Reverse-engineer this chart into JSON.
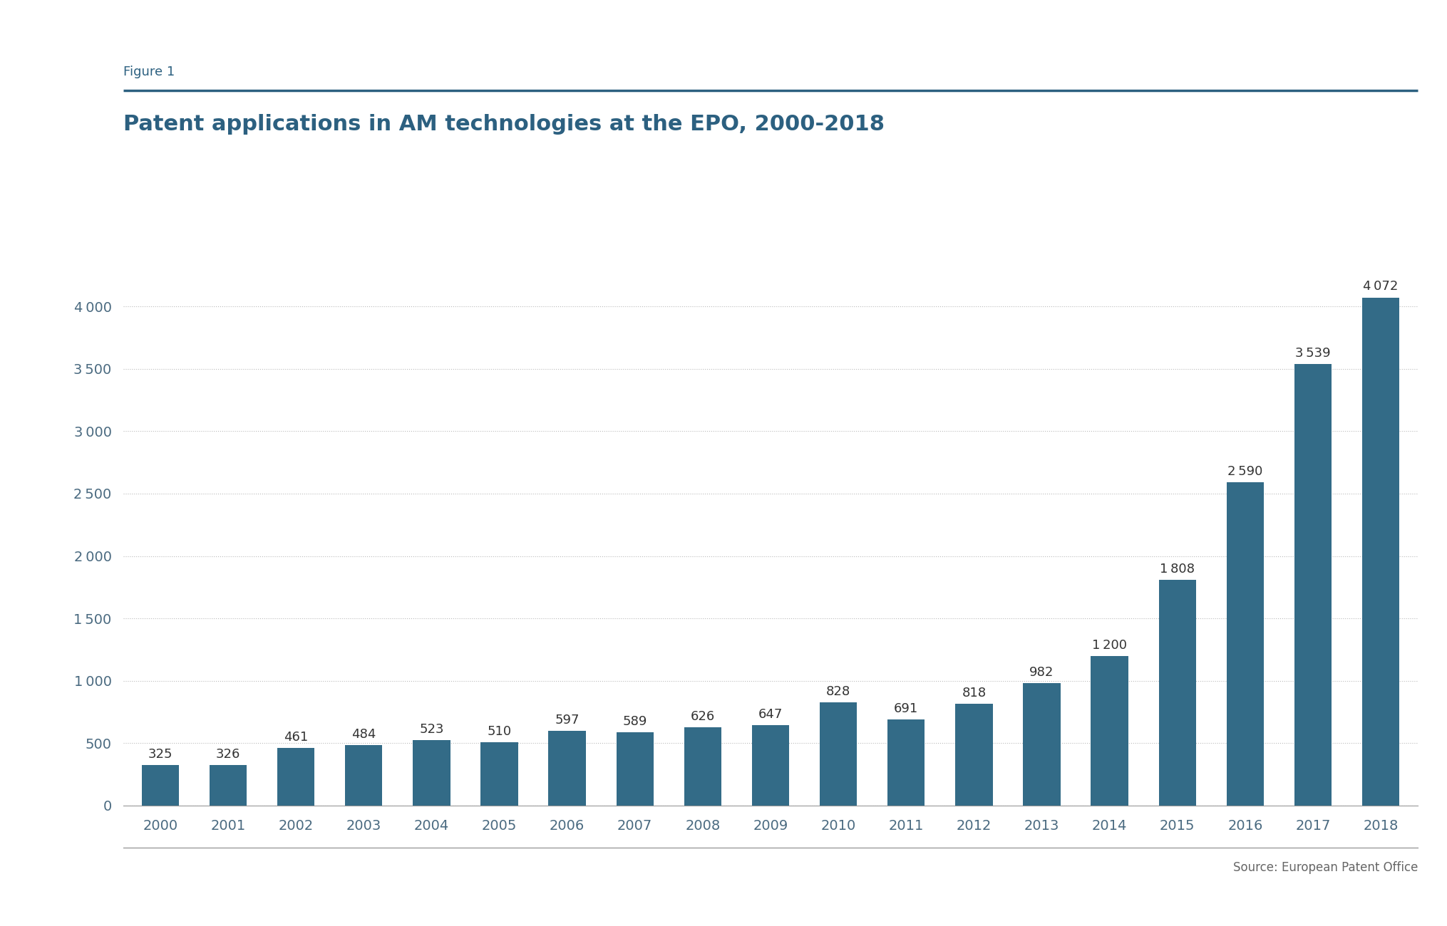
{
  "years": [
    2000,
    2001,
    2002,
    2003,
    2004,
    2005,
    2006,
    2007,
    2008,
    2009,
    2010,
    2011,
    2012,
    2013,
    2014,
    2015,
    2016,
    2017,
    2018
  ],
  "values": [
    325,
    326,
    461,
    484,
    523,
    510,
    597,
    589,
    626,
    647,
    828,
    691,
    818,
    982,
    1200,
    1808,
    2590,
    3539,
    4072
  ],
  "bar_color": "#336B87",
  "background_color": "#FFFFFF",
  "figure_label": "Figure 1",
  "title": "Patent applications in AM technologies at the EPO, 2000-2018",
  "source_text": "Source: European Patent Office",
  "ylim": [
    0,
    4600
  ],
  "yticks": [
    0,
    500,
    1000,
    1500,
    2000,
    2500,
    3000,
    3500,
    4000
  ],
  "title_color": "#2C6080",
  "figure_label_color": "#2C6080",
  "grid_color": "#BBBBBB",
  "tick_label_color": "#4A6A80",
  "source_color": "#666666",
  "value_label_color": "#333333",
  "header_line_color": "#2C6080",
  "bottom_line_color": "#888888",
  "figure_label_fontsize": 13,
  "title_fontsize": 22,
  "tick_fontsize": 14,
  "value_fontsize": 13,
  "source_fontsize": 12
}
